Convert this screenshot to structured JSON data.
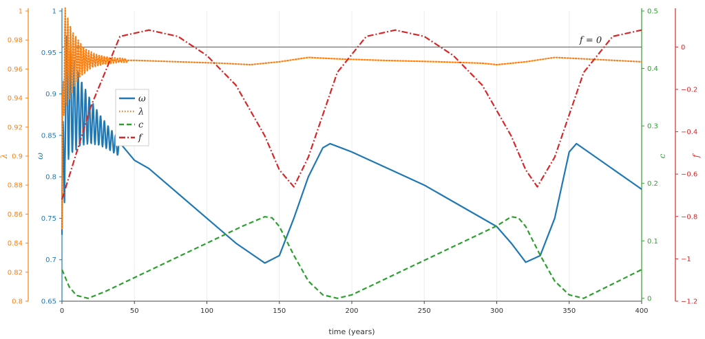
{
  "chart_data": {
    "type": "line",
    "xlabel": "time (years)",
    "xlim": [
      0,
      400
    ],
    "xticks": [
      0,
      50,
      100,
      150,
      200,
      250,
      300,
      350,
      400
    ],
    "grid": "vertical",
    "legend_position": "upper-left",
    "axes": {
      "omega": {
        "label": "ω",
        "color": "#1f77b4",
        "side": "left",
        "lim": [
          0.65,
          1.0
        ],
        "ticks": [
          "0.65",
          "0.7",
          "0.75",
          "0.8",
          "0.85",
          "0.9",
          "0.95",
          "1"
        ]
      },
      "lambda": {
        "label": "λ",
        "color": "#ff7f0e",
        "side": "left",
        "lim": [
          0.8,
          1.0
        ],
        "ticks": [
          "0.8",
          "0.82",
          "0.84",
          "0.86",
          "0.88",
          "0.9",
          "0.92",
          "0.94",
          "0.96",
          "0.98",
          "1"
        ]
      },
      "c": {
        "label": "c",
        "color": "#2ca02c",
        "side": "right",
        "lim": [
          -0.005,
          0.5
        ],
        "ticks": [
          "0",
          "0.1",
          "0.2",
          "0.3",
          "0.4",
          "0.5"
        ]
      },
      "f": {
        "label": "f",
        "color": "#d62728",
        "side": "right",
        "lim": [
          -1.2,
          0.17
        ],
        "ticks": [
          "0",
          "−0.2",
          "−0.4",
          "−0.6",
          "−0.8",
          "−1",
          "−1.2"
        ]
      }
    },
    "reference_line": {
      "label": "f = 0",
      "axis": "f",
      "value": 0
    },
    "series": [
      {
        "name": "ω",
        "axis": "omega",
        "color": "#1f77b4",
        "style": "solid",
        "x": [
          0,
          2,
          5,
          10,
          20,
          30,
          40,
          50,
          60,
          80,
          100,
          120,
          140,
          150,
          160,
          170,
          180,
          185,
          200,
          250,
          300,
          310,
          320,
          330,
          340,
          350,
          355,
          400
        ],
        "values": [
          0.73,
          0.93,
          0.78,
          0.93,
          0.88,
          0.86,
          0.84,
          0.82,
          0.81,
          0.78,
          0.75,
          0.72,
          0.696,
          0.705,
          0.75,
          0.8,
          0.835,
          0.84,
          0.83,
          0.79,
          0.74,
          0.72,
          0.697,
          0.705,
          0.75,
          0.83,
          0.84,
          0.785
        ]
      },
      {
        "name": "λ",
        "axis": "lambda",
        "color": "#ff7f0e",
        "style": "dotted",
        "x": [
          0,
          1,
          3,
          5,
          8,
          10,
          15,
          20,
          30,
          40,
          50,
          80,
          110,
          130,
          150,
          170,
          190,
          220,
          260,
          290,
          300,
          320,
          340,
          360,
          400
        ],
        "values": [
          0.85,
          0.99,
          0.92,
          0.985,
          0.94,
          0.98,
          0.95,
          0.972,
          0.965,
          0.969,
          0.966,
          0.965,
          0.964,
          0.963,
          0.965,
          0.968,
          0.967,
          0.966,
          0.965,
          0.964,
          0.963,
          0.965,
          0.968,
          0.967,
          0.965
        ]
      },
      {
        "name": "c",
        "axis": "c",
        "color": "#2ca02c",
        "style": "dashed",
        "x": [
          0,
          5,
          10,
          18,
          30,
          50,
          75,
          100,
          125,
          140,
          145,
          150,
          160,
          170,
          180,
          190,
          200,
          225,
          250,
          275,
          300,
          310,
          315,
          320,
          330,
          340,
          350,
          360,
          400
        ],
        "values": [
          0.05,
          0.02,
          0.005,
          0.0,
          0.012,
          0.036,
          0.066,
          0.096,
          0.126,
          0.142,
          0.14,
          0.125,
          0.075,
          0.03,
          0.006,
          0.0,
          0.006,
          0.036,
          0.066,
          0.096,
          0.126,
          0.142,
          0.14,
          0.125,
          0.075,
          0.03,
          0.006,
          0.0,
          0.05
        ]
      },
      {
        "name": "f",
        "axis": "f",
        "color": "#d62728",
        "style": "dashdot",
        "x": [
          0,
          20,
          40,
          60,
          80,
          100,
          120,
          140,
          150,
          160,
          170,
          190,
          210,
          230,
          250,
          270,
          290,
          310,
          320,
          328,
          340,
          360,
          380,
          400
        ],
        "values": [
          -0.72,
          -0.28,
          0.05,
          0.08,
          0.05,
          -0.04,
          -0.18,
          -0.42,
          -0.58,
          -0.66,
          -0.52,
          -0.12,
          0.05,
          0.08,
          0.05,
          -0.04,
          -0.18,
          -0.42,
          -0.58,
          -0.66,
          -0.52,
          -0.12,
          0.05,
          0.08
        ]
      }
    ]
  }
}
